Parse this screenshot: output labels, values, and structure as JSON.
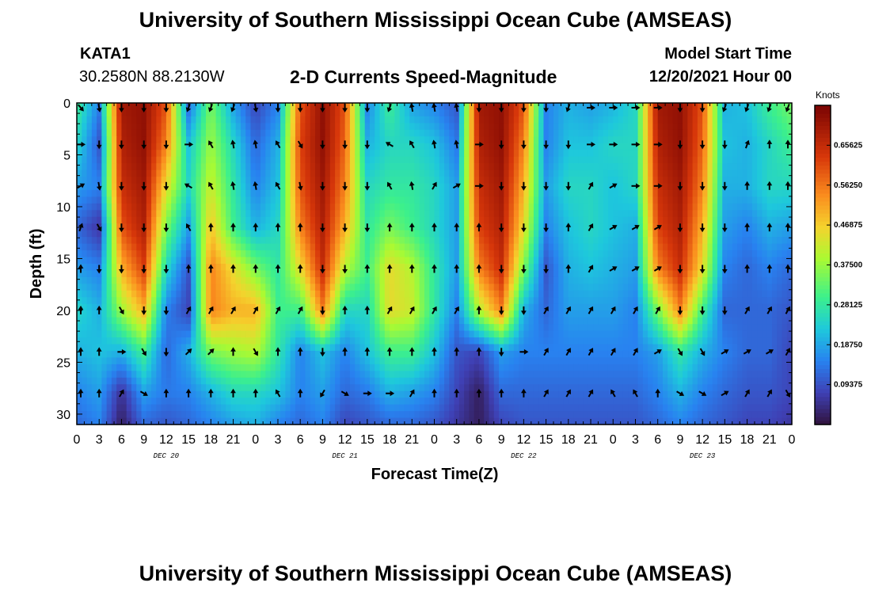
{
  "header": {
    "title": "University of Southern Mississippi Ocean Cube (AMSEAS)",
    "station_id": "KATA1",
    "station_coords": "30.2580N  88.2130W",
    "plot_title": "2-D Currents Speed-Magnitude",
    "model_start_label": "Model Start Time",
    "model_start_value": "12/20/2021 Hour 00"
  },
  "footer": {
    "title": "University of Southern Mississippi Ocean Cube (AMSEAS)"
  },
  "chart_data": {
    "type": "heatmap",
    "title": "2-D Currents Speed-Magnitude",
    "xlabel": "Forecast Time(Z)",
    "ylabel": "Depth (ft)",
    "x_hours_range": [
      0,
      96
    ],
    "y_range": [
      0,
      31
    ],
    "y_ticks": [
      0,
      5,
      10,
      15,
      20,
      25,
      30
    ],
    "x_tick_labels": [
      "0",
      "3",
      "6",
      "9",
      "12",
      "15",
      "18",
      "21",
      "0",
      "3",
      "6",
      "9",
      "12",
      "15",
      "18",
      "21",
      "0",
      "3",
      "6",
      "9",
      "12",
      "15",
      "18",
      "21",
      "0",
      "3",
      "6",
      "9",
      "12",
      "15",
      "18",
      "21",
      "0"
    ],
    "date_labels": [
      {
        "label": "DEC 20",
        "hour": 12
      },
      {
        "label": "DEC 21",
        "hour": 36
      },
      {
        "label": "DEC 22",
        "hour": 60
      },
      {
        "label": "DEC 23",
        "hour": 84
      }
    ],
    "colorbar": {
      "units": "Knots",
      "range": [
        0,
        0.75
      ],
      "ticks": [
        "0.65625",
        "0.56250",
        "0.46875",
        "0.37500",
        "0.28125",
        "0.18750",
        "0.09375"
      ],
      "tick_values": [
        0.65625,
        0.5625,
        0.46875,
        0.375,
        0.28125,
        0.1875,
        0.09375
      ]
    },
    "speed_grid_depths": [
      0,
      4,
      8,
      12,
      16,
      20,
      24,
      28,
      31
    ],
    "speed_grid_hours": [
      0,
      3,
      6,
      9,
      12,
      15,
      18,
      21,
      24,
      27,
      30,
      33,
      36,
      39,
      42,
      45,
      48,
      51,
      54,
      57,
      60,
      63,
      66,
      69,
      72,
      75,
      78,
      81,
      84,
      87,
      90,
      93,
      96
    ],
    "speed_grid": [
      [
        0.3,
        0.15,
        0.7,
        0.72,
        0.6,
        0.12,
        0.35,
        0.18,
        0.08,
        0.15,
        0.6,
        0.72,
        0.6,
        0.15,
        0.3,
        0.18,
        0.15,
        0.1,
        0.7,
        0.72,
        0.6,
        0.15,
        0.2,
        0.18,
        0.2,
        0.25,
        0.7,
        0.72,
        0.6,
        0.2,
        0.22,
        0.3,
        0.35
      ],
      [
        0.25,
        0.1,
        0.68,
        0.72,
        0.55,
        0.22,
        0.38,
        0.25,
        0.12,
        0.2,
        0.62,
        0.72,
        0.58,
        0.2,
        0.25,
        0.25,
        0.22,
        0.14,
        0.68,
        0.72,
        0.55,
        0.15,
        0.22,
        0.22,
        0.25,
        0.25,
        0.68,
        0.72,
        0.58,
        0.22,
        0.2,
        0.25,
        0.3
      ],
      [
        0.18,
        0.15,
        0.65,
        0.7,
        0.45,
        0.25,
        0.42,
        0.28,
        0.15,
        0.22,
        0.6,
        0.7,
        0.55,
        0.25,
        0.28,
        0.28,
        0.25,
        0.18,
        0.65,
        0.7,
        0.5,
        0.18,
        0.25,
        0.25,
        0.22,
        0.25,
        0.65,
        0.7,
        0.55,
        0.2,
        0.2,
        0.25,
        0.25
      ],
      [
        0.12,
        0.06,
        0.6,
        0.68,
        0.35,
        0.18,
        0.48,
        0.3,
        0.2,
        0.25,
        0.55,
        0.68,
        0.5,
        0.28,
        0.35,
        0.3,
        0.25,
        0.18,
        0.62,
        0.68,
        0.45,
        0.15,
        0.22,
        0.25,
        0.22,
        0.2,
        0.62,
        0.68,
        0.5,
        0.18,
        0.15,
        0.2,
        0.18
      ],
      [
        0.18,
        0.15,
        0.5,
        0.62,
        0.25,
        0.1,
        0.55,
        0.45,
        0.35,
        0.28,
        0.45,
        0.65,
        0.4,
        0.3,
        0.45,
        0.4,
        0.28,
        0.18,
        0.55,
        0.65,
        0.35,
        0.1,
        0.2,
        0.22,
        0.2,
        0.18,
        0.55,
        0.65,
        0.45,
        0.15,
        0.12,
        0.15,
        0.12
      ],
      [
        0.25,
        0.2,
        0.38,
        0.5,
        0.15,
        0.08,
        0.55,
        0.5,
        0.5,
        0.3,
        0.3,
        0.55,
        0.25,
        0.25,
        0.45,
        0.42,
        0.28,
        0.15,
        0.4,
        0.55,
        0.2,
        0.12,
        0.18,
        0.18,
        0.18,
        0.15,
        0.35,
        0.55,
        0.3,
        0.12,
        0.12,
        0.12,
        0.1
      ],
      [
        0.2,
        0.22,
        0.2,
        0.3,
        0.12,
        0.2,
        0.35,
        0.38,
        0.4,
        0.28,
        0.15,
        0.22,
        0.15,
        0.22,
        0.3,
        0.3,
        0.22,
        0.1,
        0.08,
        0.18,
        0.15,
        0.15,
        0.15,
        0.15,
        0.15,
        0.15,
        0.18,
        0.28,
        0.2,
        0.15,
        0.12,
        0.12,
        0.08
      ],
      [
        0.15,
        0.18,
        0.05,
        0.18,
        0.14,
        0.15,
        0.2,
        0.25,
        0.25,
        0.22,
        0.15,
        0.18,
        0.12,
        0.14,
        0.2,
        0.18,
        0.15,
        0.08,
        0.02,
        0.12,
        0.12,
        0.12,
        0.12,
        0.12,
        0.12,
        0.12,
        0.15,
        0.2,
        0.15,
        0.12,
        0.1,
        0.1,
        0.08
      ],
      [
        0.12,
        0.15,
        0.02,
        0.12,
        0.1,
        0.12,
        0.15,
        0.18,
        0.2,
        0.15,
        0.12,
        0.15,
        0.08,
        0.1,
        0.12,
        0.12,
        0.1,
        0.06,
        0.02,
        0.08,
        0.1,
        0.1,
        0.1,
        0.1,
        0.1,
        0.1,
        0.12,
        0.15,
        0.12,
        0.1,
        0.08,
        0.08,
        0.06
      ]
    ],
    "vector_depths": [
      0,
      4,
      8,
      12,
      16,
      20,
      24,
      28
    ],
    "vector_hours": [
      0,
      3,
      6,
      9,
      12,
      15,
      18,
      21,
      24,
      27,
      30,
      33,
      36,
      39,
      42,
      45,
      48,
      51,
      54,
      57,
      60,
      63,
      66,
      69,
      72,
      75,
      78,
      81,
      84,
      87,
      90,
      93,
      96
    ],
    "vector_directions_deg": [
      [
        140,
        170,
        180,
        180,
        180,
        200,
        200,
        200,
        170,
        180,
        180,
        180,
        180,
        180,
        200,
        350,
        350,
        350,
        180,
        180,
        180,
        180,
        200,
        90,
        90,
        90,
        90,
        180,
        180,
        200,
        200,
        200,
        200
      ],
      [
        90,
        180,
        180,
        180,
        180,
        90,
        330,
        350,
        350,
        330,
        150,
        180,
        180,
        180,
        300,
        330,
        350,
        350,
        90,
        180,
        180,
        180,
        180,
        90,
        90,
        90,
        90,
        180,
        180,
        180,
        20,
        0,
        0
      ],
      [
        60,
        170,
        180,
        180,
        180,
        300,
        330,
        350,
        350,
        330,
        170,
        180,
        180,
        180,
        330,
        350,
        30,
        60,
        90,
        180,
        180,
        180,
        180,
        30,
        60,
        90,
        90,
        180,
        180,
        180,
        0,
        0,
        0
      ],
      [
        20,
        150,
        180,
        180,
        180,
        330,
        0,
        0,
        0,
        0,
        0,
        180,
        180,
        180,
        0,
        0,
        0,
        0,
        0,
        180,
        180,
        180,
        0,
        30,
        60,
        60,
        60,
        180,
        180,
        180,
        0,
        0,
        0
      ],
      [
        0,
        180,
        180,
        180,
        180,
        0,
        0,
        0,
        0,
        0,
        0,
        180,
        180,
        0,
        0,
        0,
        0,
        0,
        0,
        180,
        180,
        180,
        0,
        30,
        60,
        60,
        60,
        180,
        180,
        180,
        0,
        0,
        0
      ],
      [
        0,
        0,
        150,
        180,
        180,
        30,
        30,
        30,
        30,
        30,
        30,
        180,
        0,
        0,
        30,
        30,
        30,
        30,
        0,
        180,
        180,
        30,
        30,
        30,
        30,
        30,
        30,
        180,
        180,
        180,
        30,
        30,
        30
      ],
      [
        0,
        0,
        90,
        150,
        180,
        45,
        45,
        0,
        150,
        0,
        0,
        180,
        0,
        0,
        0,
        0,
        0,
        0,
        0,
        180,
        90,
        30,
        30,
        30,
        30,
        30,
        60,
        150,
        150,
        60,
        60,
        60,
        30
      ],
      [
        0,
        0,
        30,
        120,
        0,
        0,
        0,
        0,
        0,
        330,
        0,
        210,
        120,
        90,
        90,
        30,
        0,
        0,
        0,
        0,
        0,
        30,
        30,
        30,
        330,
        330,
        0,
        120,
        120,
        60,
        30,
        30,
        150
      ]
    ]
  }
}
